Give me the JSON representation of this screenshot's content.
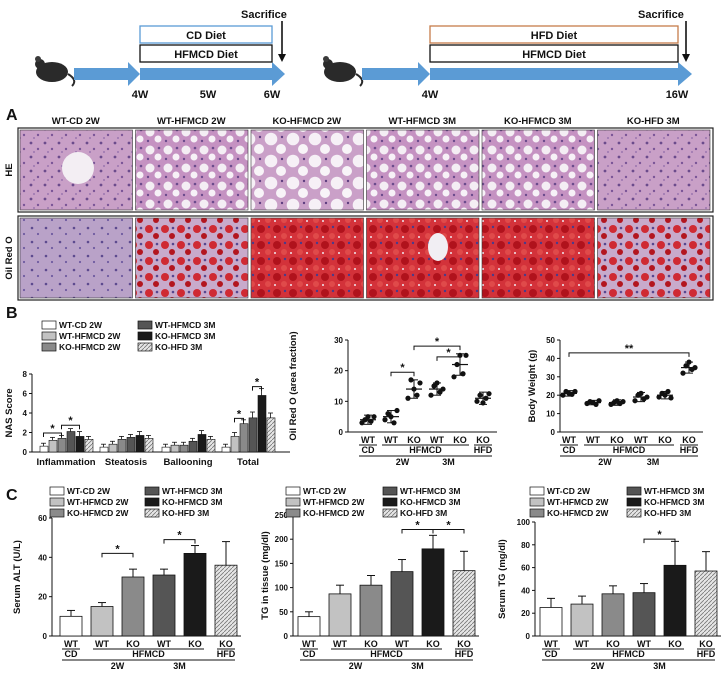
{
  "timeline": {
    "sacrifice": "Sacrifice",
    "left": {
      "box1": "CD Diet",
      "box2": "HFMCD Diet",
      "ticks": [
        "4W",
        "5W",
        "6W"
      ]
    },
    "right": {
      "box1": "HFD Diet",
      "box2": "HFMCD Diet",
      "ticks": [
        "4W",
        "16W"
      ]
    }
  },
  "panel_labels": {
    "A": "A",
    "B": "B",
    "C": "C"
  },
  "histology": {
    "columns": [
      "WT-CD 2W",
      "WT-HFMCD 2W",
      "KO-HFMCD 2W",
      "WT-HFMCD 3M",
      "KO-HFMCD 3M",
      "KO-HFD 3M"
    ],
    "rows": [
      "HE",
      "Oil Red O"
    ]
  },
  "groups": {
    "wt": "WT",
    "ko": "KO",
    "cd": "CD",
    "hfmcd": "HFMCD",
    "hfd": "HFD",
    "w2": "2W",
    "m3": "3M"
  },
  "sig": {
    "one": "*",
    "two": "**"
  },
  "colors": {
    "cdbar": "#ffffff",
    "wt2": "#c2c2c2",
    "ko2": "#8a8a8a",
    "wt3": "#555555",
    "ko3": "#1a1a1a",
    "hfd": "#d6d6d6",
    "sep": "#3a3a3a"
  },
  "chart_data": [
    {
      "type": "bar",
      "title": "",
      "ylabel": "NAS Score",
      "ylim": [
        0,
        8
      ],
      "yticks": [
        "0",
        "2",
        "4",
        "6",
        "8"
      ],
      "categories": [
        "Inflammation",
        "Steatosis",
        "Ballooning",
        "Total"
      ],
      "legend": [
        "WT-CD 2W",
        "WT-HFMCD 2W",
        "KO-HFMCD 2W",
        "WT-HFMCD 3M",
        "KO-HFMCD 3M",
        "KO-HFD 3M"
      ],
      "series": [
        {
          "name": "WT-CD 2W",
          "values": [
            0.6,
            0.5,
            0.5,
            0.5
          ],
          "errors": [
            0.3,
            0.3,
            0.3,
            0.3
          ]
        },
        {
          "name": "WT-HFMCD 2W",
          "values": [
            1.2,
            0.8,
            0.7,
            1.6
          ],
          "errors": [
            0.3,
            0.3,
            0.3,
            0.4
          ]
        },
        {
          "name": "KO-HFMCD 2W",
          "values": [
            1.4,
            1.3,
            0.7,
            2.9
          ],
          "errors": [
            0.3,
            0.3,
            0.3,
            0.4
          ]
        },
        {
          "name": "WT-HFMCD 3M",
          "values": [
            2.1,
            1.5,
            1.1,
            3.5
          ],
          "errors": [
            0.3,
            0.3,
            0.3,
            0.6
          ]
        },
        {
          "name": "KO-HFMCD 3M",
          "values": [
            1.6,
            1.7,
            1.8,
            5.8
          ],
          "errors": [
            0.5,
            0.4,
            0.4,
            0.7
          ]
        },
        {
          "name": "KO-HFD 3M",
          "values": [
            1.3,
            1.4,
            1.3,
            3.5
          ],
          "errors": [
            0.3,
            0.3,
            0.3,
            0.5
          ]
        }
      ]
    },
    {
      "type": "scatter",
      "ylabel": "Oil Red O (area fraction)",
      "ylim": [
        0,
        30
      ],
      "yticks": [
        "0",
        "10",
        "20",
        "30"
      ],
      "groups": [
        "WT-CD 2W",
        "WT-HFMCD 2W",
        "KO-HFMCD 2W",
        "WT-HFMCD 3M",
        "KO-HFMCD 3M",
        "KO-HFD 3M"
      ],
      "means": [
        4,
        5,
        14,
        14,
        22,
        11
      ],
      "errors": [
        1.5,
        2,
        3,
        2,
        3.5,
        2
      ],
      "points": [
        [
          3,
          4,
          5,
          3.5,
          5
        ],
        [
          4,
          6,
          5,
          3,
          7
        ],
        [
          11,
          17,
          14,
          12,
          16
        ],
        [
          12,
          15,
          16,
          13,
          14
        ],
        [
          18,
          22,
          25,
          19,
          25
        ],
        [
          10,
          12,
          9.5,
          11,
          12.5
        ]
      ]
    },
    {
      "type": "scatter",
      "ylabel": "Body Weight (g)",
      "ylim": [
        0,
        50
      ],
      "yticks": [
        "0",
        "10",
        "20",
        "30",
        "40",
        "50"
      ],
      "groups": [
        "WT-CD 2W",
        "WT-HFMCD 2W",
        "KO-HFMCD 2W",
        "WT-HFMCD 3M",
        "KO-HFMCD 3M",
        "KO-HFD 3M"
      ],
      "means": [
        21,
        16,
        16,
        19,
        20,
        35
      ],
      "errors": [
        1.5,
        1.2,
        1.5,
        2.5,
        2,
        3
      ],
      "points": [
        [
          20,
          22,
          21,
          20.5,
          22
        ],
        [
          15.5,
          16.5,
          16,
          15,
          17
        ],
        [
          15,
          16,
          17,
          15.5,
          16.5
        ],
        [
          17,
          20,
          21,
          18,
          19
        ],
        [
          19,
          21,
          20,
          22,
          18.5
        ],
        [
          32,
          36,
          38,
          34,
          35
        ]
      ]
    },
    {
      "type": "bar",
      "ylabel": "Serum ALT (U/L)",
      "ylim": [
        0,
        60
      ],
      "yticks": [
        "0",
        "20",
        "40",
        "60"
      ],
      "categories": [
        "WT-CD 2W",
        "WT-HFMCD 2W",
        "KO-HFMCD 2W",
        "WT-HFMCD 3M",
        "KO-HFMCD 3M",
        "KO-HFD 3M"
      ],
      "values": [
        10,
        15,
        30,
        31,
        42,
        36
      ],
      "errors": [
        3,
        2,
        4,
        3,
        4,
        12
      ]
    },
    {
      "type": "bar",
      "ylabel": "TG in tissue (mg/dl)",
      "ylim": [
        0,
        250
      ],
      "yticks": [
        "0",
        "50",
        "100",
        "150",
        "200",
        "250"
      ],
      "categories": [
        "WT-CD 2W",
        "WT-HFMCD 2W",
        "KO-HFMCD 2W",
        "WT-HFMCD 3M",
        "KO-HFMCD 3M",
        "KO-HFD 3M"
      ],
      "values": [
        40,
        87,
        105,
        133,
        180,
        135
      ],
      "errors": [
        10,
        18,
        20,
        25,
        28,
        40
      ]
    },
    {
      "type": "bar",
      "ylabel": "Serum TG (mg/dl)",
      "ylim": [
        0,
        100
      ],
      "yticks": [
        "0",
        "20",
        "40",
        "60",
        "80",
        "100"
      ],
      "categories": [
        "WT-CD 2W",
        "WT-HFMCD 2W",
        "KO-HFMCD 2W",
        "WT-HFMCD 3M",
        "KO-HFMCD 3M",
        "KO-HFD 3M"
      ],
      "values": [
        25,
        28,
        37,
        38,
        62,
        57
      ],
      "errors": [
        8,
        7,
        7,
        8,
        21,
        17
      ]
    }
  ]
}
